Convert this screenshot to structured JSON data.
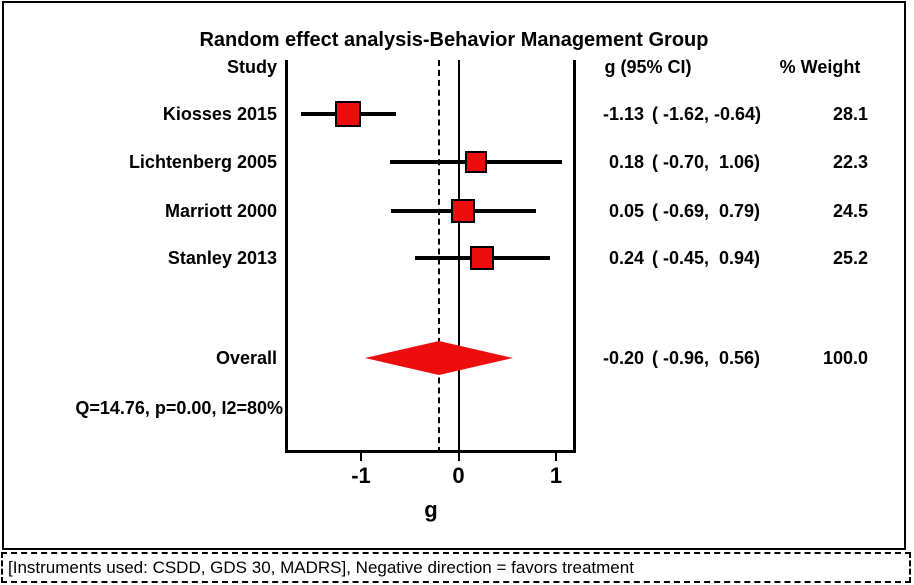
{
  "figure": {
    "title": "Random effect analysis-Behavior Management Group",
    "col_headers": {
      "study": "Study",
      "effect": "g (95% CI)",
      "weight": "% Weight"
    },
    "stats_line": "Q=14.76, p=0.00, I2=80%",
    "axis": {
      "label": "g",
      "tick_labels": [
        "-1",
        "0",
        "1"
      ]
    },
    "footer_note": "[Instruments used: CSDD, GDS 30, MADRS], Negative direction = favors treatment",
    "colors": {
      "marker": "#ee0d0d",
      "line": "#000000",
      "background": "#ffffff"
    }
  },
  "chart_data": {
    "type": "forest",
    "title": "Random effect analysis-Behavior Management Group",
    "xlabel": "g",
    "xticks": [
      -1,
      0,
      1
    ],
    "xlim": [
      -1.77,
      1.19
    ],
    "zero_line": 0,
    "overall_effect_dashed_line": -0.2,
    "studies": [
      {
        "label": "Kiosses 2015",
        "g": -1.13,
        "ci": [
          -1.62,
          -0.64
        ],
        "weight": 28.1,
        "g_text": "-1.13",
        "ci_text": "( -1.62, -0.64)",
        "weight_text": "28.1"
      },
      {
        "label": "Lichtenberg 2005",
        "g": 0.18,
        "ci": [
          -0.7,
          1.06
        ],
        "weight": 22.3,
        "g_text": "0.18",
        "ci_text": "( -0.70,  1.06)",
        "weight_text": "22.3"
      },
      {
        "label": "Marriott 2000",
        "g": 0.05,
        "ci": [
          -0.69,
          0.79
        ],
        "weight": 24.5,
        "g_text": "0.05",
        "ci_text": "( -0.69,  0.79)",
        "weight_text": "24.5"
      },
      {
        "label": "Stanley 2013",
        "g": 0.24,
        "ci": [
          -0.45,
          0.94
        ],
        "weight": 25.2,
        "g_text": "0.24",
        "ci_text": "( -0.45,  0.94)",
        "weight_text": "25.2"
      }
    ],
    "overall": {
      "label": "Overall",
      "g": -0.2,
      "ci": [
        -0.96,
        0.56
      ],
      "weight": 100.0,
      "g_text": "-0.20",
      "ci_text": "( -0.96,  0.56)",
      "weight_text": "100.0"
    },
    "heterogeneity": {
      "Q": 14.76,
      "p": 0.0,
      "I2": "80%"
    }
  }
}
